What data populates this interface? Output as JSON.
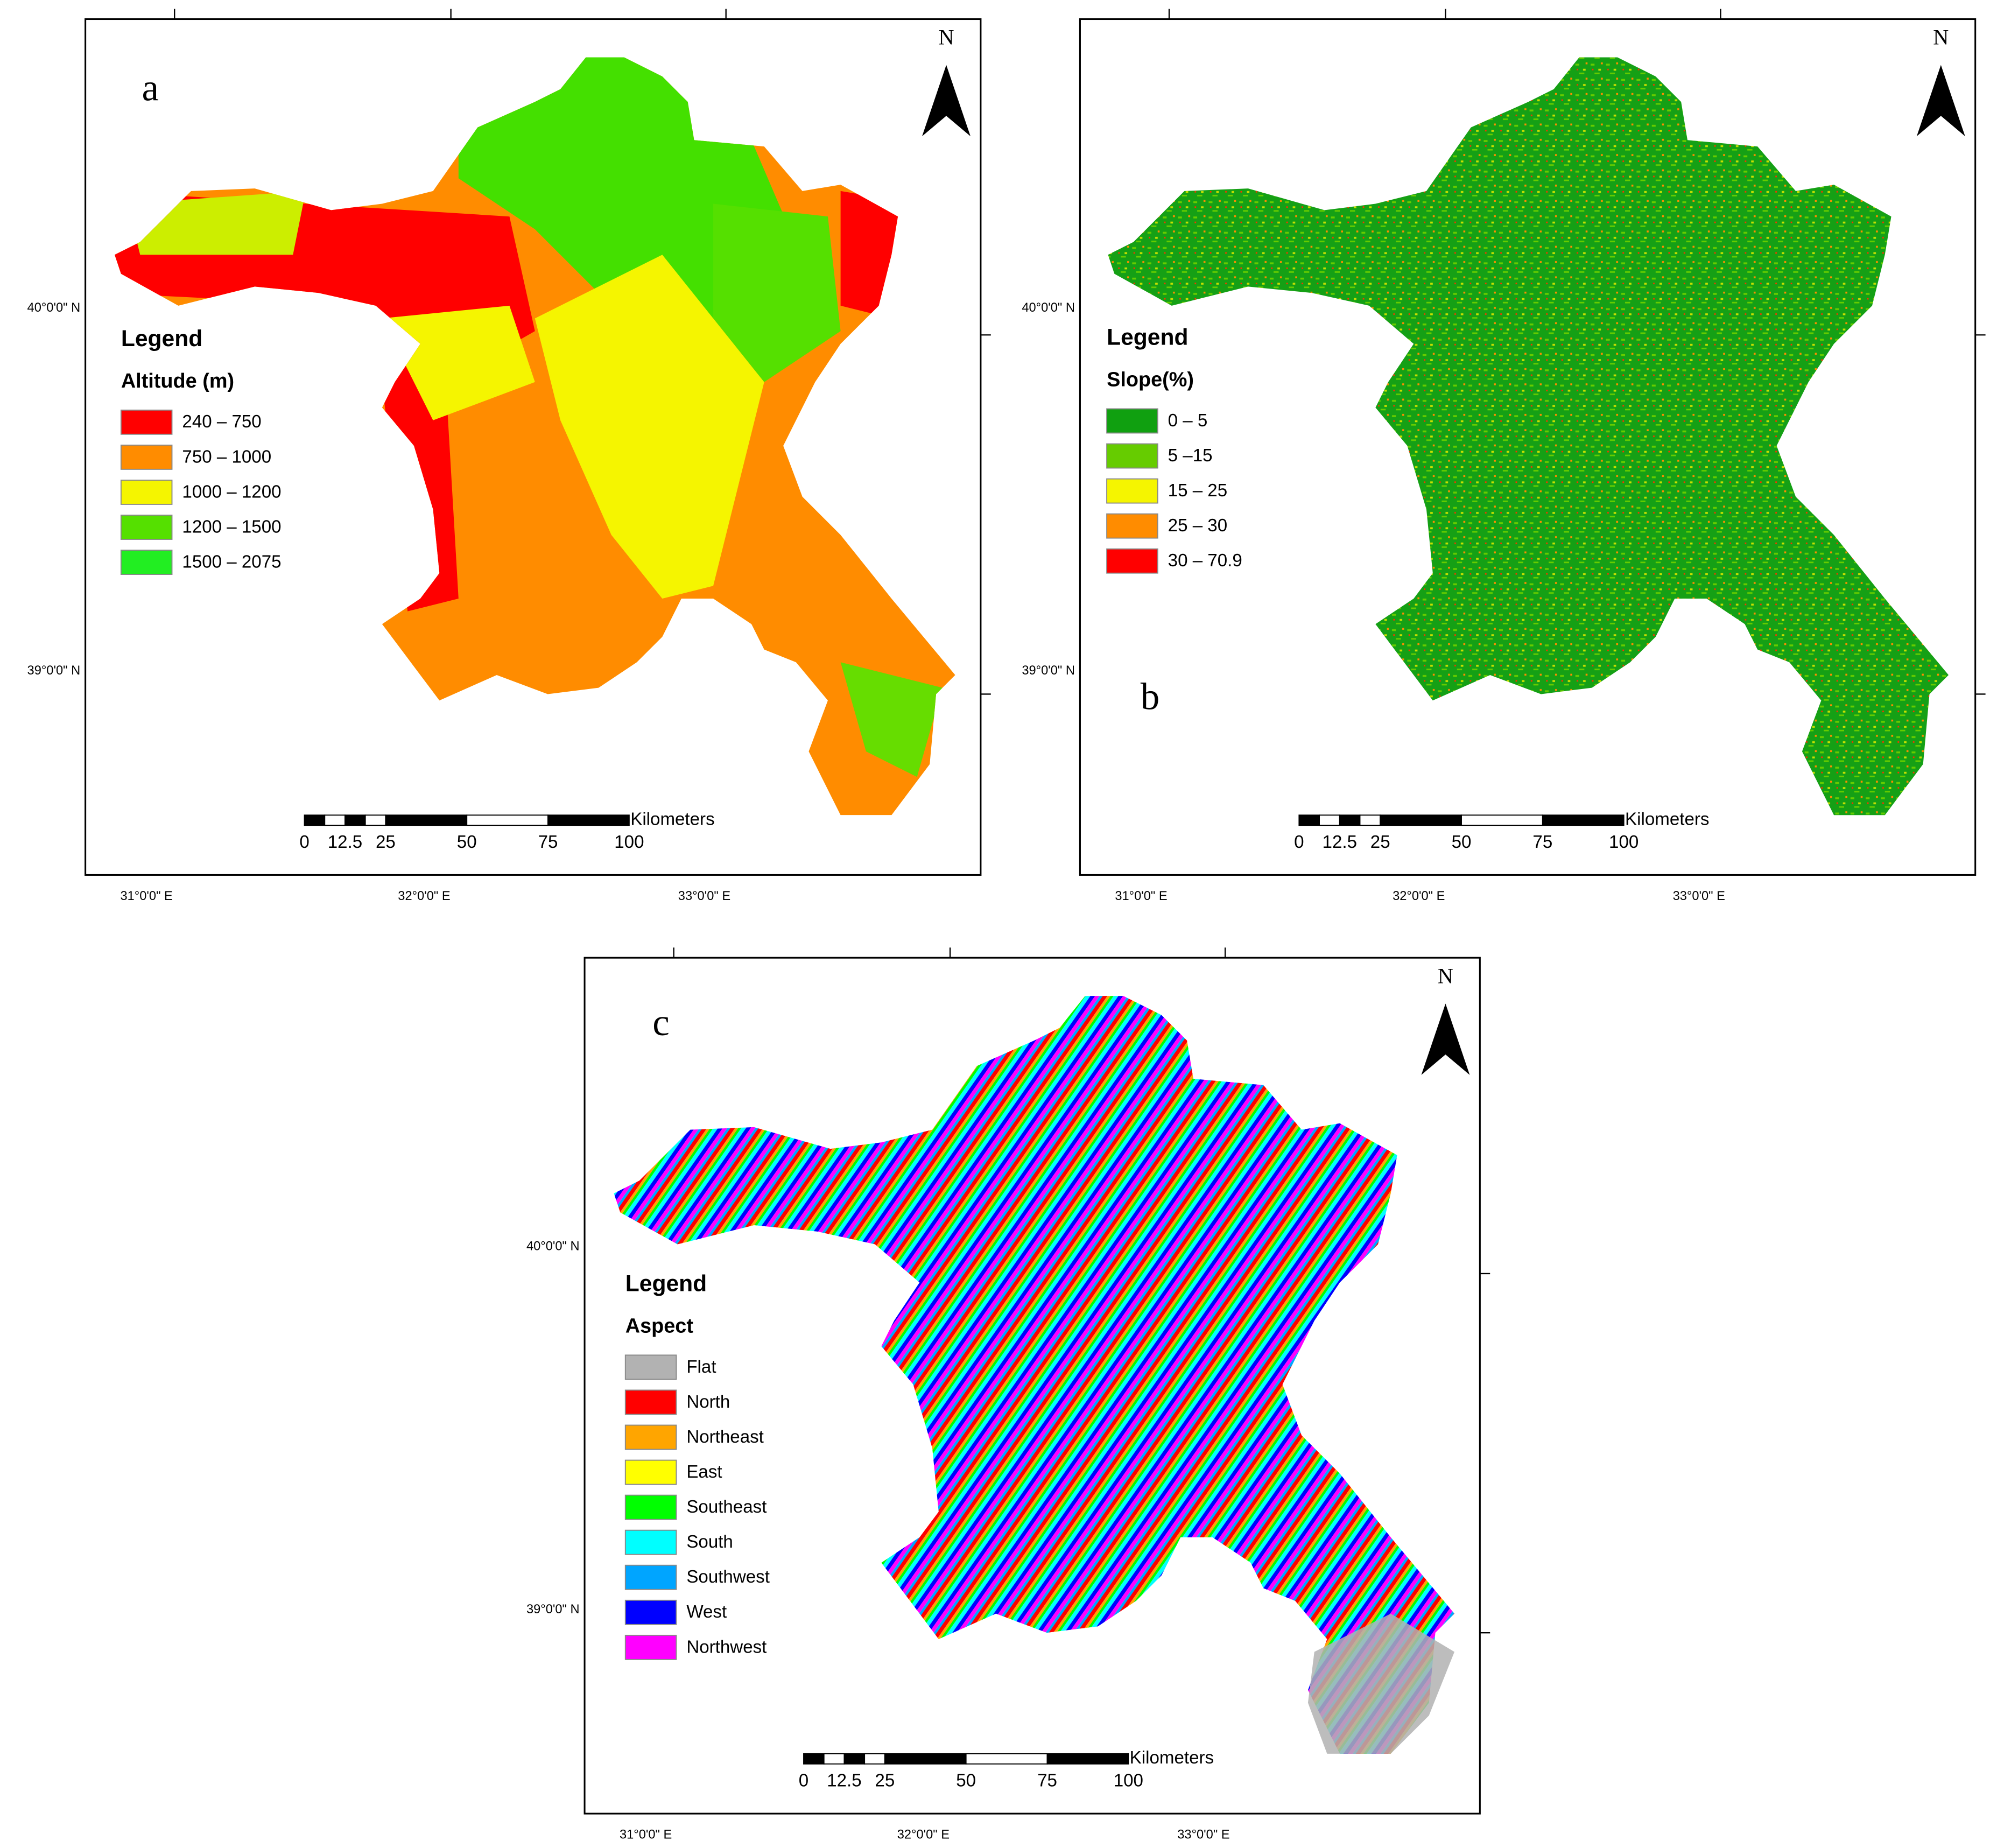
{
  "panels": [
    {
      "letter": "a",
      "north": "N",
      "legend_title": "Legend",
      "legend_subtitle": "Altitude (m)",
      "legend": [
        {
          "label": "240 – 750",
          "color": "#ff0000"
        },
        {
          "label": "750 – 1000",
          "color": "#ff8c00"
        },
        {
          "label": "1000  – 1200",
          "color": "#f5f500"
        },
        {
          "label": "1200  – 1500",
          "color": "#55e000"
        },
        {
          "label": "1500  – 2075",
          "color": "#22ee22"
        }
      ],
      "scale_unit": "Kilometers",
      "scale_labels": [
        "0",
        "12.5",
        "25",
        "50",
        "75",
        "100"
      ],
      "lon_labels": [
        "31°0'0\" E",
        "32°0'0\" E",
        "33°0'0\" E"
      ],
      "lat_labels": [
        "40°0'0\" N",
        "39°0'0\" N"
      ]
    },
    {
      "letter": "b",
      "north": "N",
      "legend_title": "Legend",
      "legend_subtitle": "Slope(%)",
      "legend": [
        {
          "label": "0 – 5",
          "color": "#10a010"
        },
        {
          "label": "5 –15",
          "color": "#66cc00"
        },
        {
          "label": "15 – 25",
          "color": "#f5f500"
        },
        {
          "label": "25 – 30",
          "color": "#ff8c00"
        },
        {
          "label": "30 – 70.9",
          "color": "#ff0000"
        }
      ],
      "scale_unit": "Kilometers",
      "scale_labels": [
        "0",
        "12.5",
        "25",
        "50",
        "75",
        "100"
      ],
      "lon_labels": [
        "31°0'0\" E",
        "32°0'0\" E",
        "33°0'0\" E"
      ],
      "lat_labels": [
        "40°0'0\" N",
        "39°0'0\" N"
      ]
    },
    {
      "letter": "c",
      "north": "N",
      "legend_title": "Legend",
      "legend_subtitle": "Aspect",
      "legend": [
        {
          "label": "Flat",
          "color": "#b2b2b2"
        },
        {
          "label": "North",
          "color": "#ff0000"
        },
        {
          "label": "Northeast",
          "color": "#ffa500"
        },
        {
          "label": "East",
          "color": "#ffff00"
        },
        {
          "label": "Southeast",
          "color": "#00ff00"
        },
        {
          "label": "South",
          "color": "#00ffff"
        },
        {
          "label": "Southwest",
          "color": "#00a5ff"
        },
        {
          "label": "West",
          "color": "#0000ff"
        },
        {
          "label": "Northwest",
          "color": "#ff00ff"
        }
      ],
      "scale_unit": "Kilometers",
      "scale_labels": [
        "0",
        "12.5",
        "25",
        "50",
        "75",
        "100"
      ],
      "lon_labels": [
        "31°0'0\" E",
        "32°0'0\" E",
        "33°0'0\" E"
      ],
      "lat_labels": [
        "40°0'0\" N",
        "39°0'0\" N"
      ]
    }
  ]
}
